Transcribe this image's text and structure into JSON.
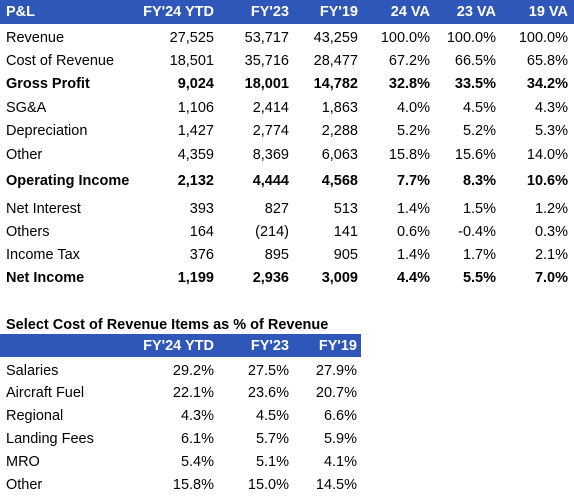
{
  "table1": {
    "header": [
      "P&L",
      "FY'24 YTD",
      "FY'23",
      "FY'19",
      "24 VA",
      "23 VA",
      "19 VA"
    ],
    "rows": [
      {
        "cells": [
          "Revenue",
          "27,525",
          "53,717",
          "43,259",
          "100.0%",
          "100.0%",
          "100.0%"
        ]
      },
      {
        "cells": [
          "Cost of Revenue",
          "18,501",
          "35,716",
          "28,477",
          "67.2%",
          "66.5%",
          "65.8%"
        ]
      },
      {
        "cells": [
          "Gross Profit",
          "9,024",
          "18,001",
          "14,782",
          "32.8%",
          "33.5%",
          "34.2%"
        ],
        "bold": true
      },
      {
        "cells": [
          "SG&A",
          "1,106",
          "2,414",
          "1,863",
          "4.0%",
          "4.5%",
          "4.3%"
        ]
      },
      {
        "cells": [
          "Depreciation",
          "1,427",
          "2,774",
          "2,288",
          "5.2%",
          "5.2%",
          "5.3%"
        ]
      },
      {
        "cells": [
          "Other",
          "4,359",
          "8,369",
          "6,063",
          "15.8%",
          "15.6%",
          "14.0%"
        ]
      },
      {
        "cells": [
          "Operating Income",
          "2,132",
          "4,444",
          "4,568",
          "7.7%",
          "8.3%",
          "10.6%"
        ],
        "bold": true
      },
      {
        "cells": [
          "Net Interest",
          "393",
          "827",
          "513",
          "1.4%",
          "1.5%",
          "1.2%"
        ]
      },
      {
        "cells": [
          "Others",
          "164",
          "(214)",
          "141",
          "0.6%",
          "-0.4%",
          "0.3%"
        ]
      },
      {
        "cells": [
          "Income Tax",
          "376",
          "895",
          "905",
          "1.4%",
          "1.7%",
          "2.1%"
        ]
      },
      {
        "cells": [
          "Net Income",
          "1,199",
          "2,936",
          "3,009",
          "4.4%",
          "5.5%",
          "7.0%"
        ],
        "bold": true
      }
    ]
  },
  "table2": {
    "title": "Select Cost of Revenue Items as % of Revenue",
    "header": [
      "",
      "FY'24 YTD",
      "FY'23",
      "FY'19"
    ],
    "rows": [
      {
        "cells": [
          "Salaries",
          "29.2%",
          "27.5%",
          "27.9%"
        ]
      },
      {
        "cells": [
          "Aircraft Fuel",
          "22.1%",
          "23.6%",
          "20.7%"
        ]
      },
      {
        "cells": [
          "Regional",
          "4.3%",
          "4.5%",
          "6.6%"
        ]
      },
      {
        "cells": [
          "Landing Fees",
          "6.1%",
          "5.7%",
          "5.9%"
        ]
      },
      {
        "cells": [
          "MRO",
          "5.4%",
          "5.1%",
          "4.1%"
        ]
      },
      {
        "cells": [
          "Other",
          "15.8%",
          "15.0%",
          "14.5%"
        ]
      }
    ]
  }
}
